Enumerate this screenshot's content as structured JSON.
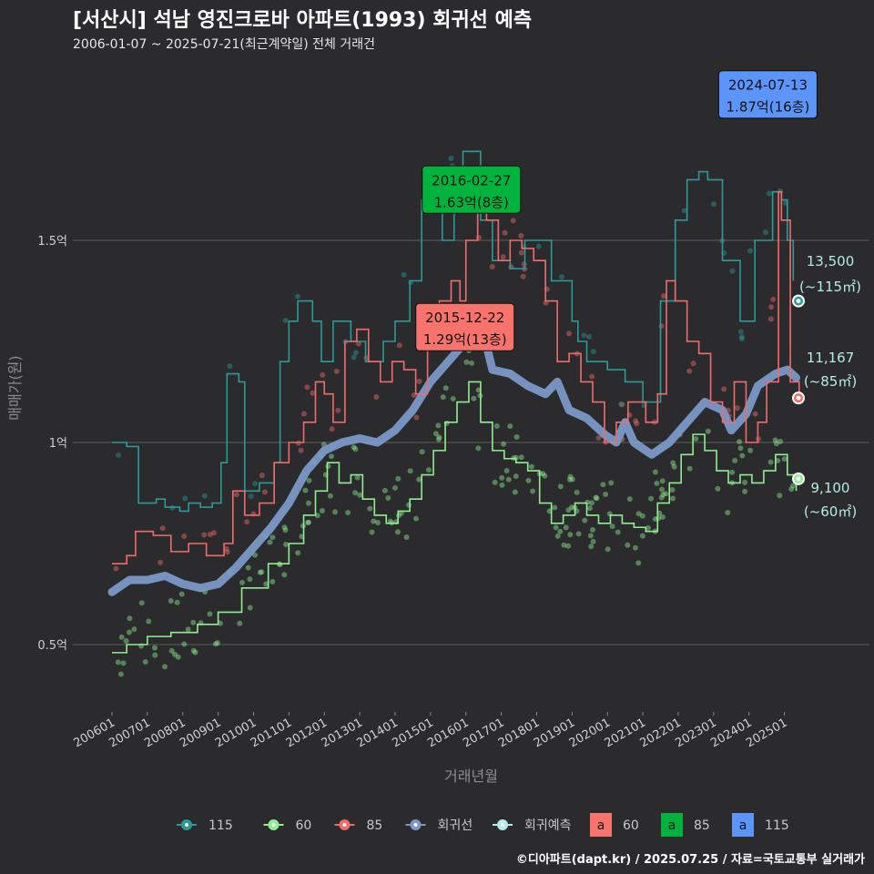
{
  "header": {
    "title": "[서산시] 석남 영진크로바 아파트(1993) 회귀선 예측",
    "subtitle": "2006-01-07 ~ 2025-07-21(최근계약일) 전체 거래건"
  },
  "caption": "©디아파트(dapt.kr) / 2025.07.25 / 자료=국토교통부 실거래가",
  "chart_data": {
    "type": "line",
    "xlabel": "거래년월",
    "ylabel": "매매가(원)",
    "x_range": [
      "2006-01",
      "2025-07"
    ],
    "ylim": [
      0.32,
      1.98
    ],
    "y_ticks": [
      {
        "value": 0.5,
        "label": "0.5억"
      },
      {
        "value": 1.0,
        "label": "1억"
      },
      {
        "value": 1.5,
        "label": "1.5억"
      }
    ],
    "x_ticks": [
      "200601",
      "200701",
      "200801",
      "200901",
      "201001",
      "201101",
      "201201",
      "201301",
      "201401",
      "201501",
      "201601",
      "201701",
      "201801",
      "201901",
      "202001",
      "202101",
      "202201",
      "202301",
      "202401",
      "202501"
    ],
    "grid": true,
    "colors": {
      "s115": "#2b9a98",
      "s60": "#90ee90",
      "s85": "#f06c6c",
      "regression": "#7a99c8",
      "forecast": "#b2ece8"
    },
    "series": [
      {
        "name": "115",
        "key": "s115",
        "color": "#2b9a98",
        "points": [
          [
            "2006-01",
            1.0
          ],
          [
            "2006-06",
            0.99
          ],
          [
            "2006-10",
            0.85
          ],
          [
            "2007-04",
            0.86
          ],
          [
            "2007-07",
            0.84
          ],
          [
            "2007-12",
            0.83
          ],
          [
            "2008-03",
            0.85
          ],
          [
            "2008-07",
            0.84
          ],
          [
            "2008-11",
            0.85
          ],
          [
            "2009-02",
            0.95
          ],
          [
            "2009-04",
            1.17
          ],
          [
            "2009-08",
            1.15
          ],
          [
            "2009-10",
            0.88
          ],
          [
            "2010-03",
            0.9
          ],
          [
            "2010-08",
            0.95
          ],
          [
            "2010-10",
            1.2
          ],
          [
            "2011-01",
            1.3
          ],
          [
            "2011-04",
            1.35
          ],
          [
            "2011-09",
            1.3
          ],
          [
            "2011-12",
            1.2
          ],
          [
            "2012-04",
            1.3
          ],
          [
            "2012-10",
            1.25
          ],
          [
            "2013-03",
            1.2
          ],
          [
            "2013-09",
            1.25
          ],
          [
            "2014-01",
            1.3
          ],
          [
            "2014-06",
            1.4
          ],
          [
            "2014-10",
            1.6
          ],
          [
            "2015-01",
            1.62
          ],
          [
            "2015-05",
            1.5
          ],
          [
            "2015-09",
            1.68
          ],
          [
            "2015-12",
            1.72
          ],
          [
            "2016-01",
            1.72
          ],
          [
            "2016-06",
            1.55
          ],
          [
            "2016-10",
            1.45
          ],
          [
            "2017-04",
            1.43
          ],
          [
            "2017-09",
            1.5
          ],
          [
            "2018-03",
            1.5
          ],
          [
            "2018-06",
            1.4
          ],
          [
            "2018-08",
            1.4
          ],
          [
            "2019-01",
            1.3
          ],
          [
            "2019-03",
            1.25
          ],
          [
            "2019-06",
            1.2
          ],
          [
            "2020-01",
            1.18
          ],
          [
            "2020-07",
            1.15
          ],
          [
            "2021-01",
            1.1
          ],
          [
            "2021-07",
            1.35
          ],
          [
            "2021-12",
            1.55
          ],
          [
            "2022-04",
            1.65
          ],
          [
            "2022-08",
            1.67
          ],
          [
            "2022-11",
            1.65
          ],
          [
            "2023-04",
            1.45
          ],
          [
            "2023-10",
            1.3
          ],
          [
            "2024-03",
            1.5
          ],
          [
            "2024-09",
            1.62
          ],
          [
            "2024-12",
            1.6
          ],
          [
            "2025-02",
            1.5
          ],
          [
            "2025-04",
            1.4
          ]
        ]
      },
      {
        "name": "60",
        "key": "s60",
        "color": "#90ee90",
        "points": [
          [
            "2006-01",
            0.48
          ],
          [
            "2006-06",
            0.5
          ],
          [
            "2007-01",
            0.52
          ],
          [
            "2007-09",
            0.53
          ],
          [
            "2008-06",
            0.55
          ],
          [
            "2009-01",
            0.58
          ],
          [
            "2009-09",
            0.64
          ],
          [
            "2010-06",
            0.7
          ],
          [
            "2011-01",
            0.75
          ],
          [
            "2011-06",
            0.82
          ],
          [
            "2011-10",
            0.88
          ],
          [
            "2012-02",
            0.95
          ],
          [
            "2012-06",
            0.9
          ],
          [
            "2012-10",
            0.92
          ],
          [
            "2013-02",
            0.86
          ],
          [
            "2013-06",
            0.82
          ],
          [
            "2013-10",
            0.8
          ],
          [
            "2014-02",
            0.83
          ],
          [
            "2014-06",
            0.86
          ],
          [
            "2014-10",
            0.92
          ],
          [
            "2015-02",
            0.98
          ],
          [
            "2015-06",
            1.05
          ],
          [
            "2015-10",
            1.1
          ],
          [
            "2016-02",
            1.15
          ],
          [
            "2016-06",
            1.05
          ],
          [
            "2016-10",
            0.98
          ],
          [
            "2017-02",
            0.96
          ],
          [
            "2017-06",
            0.95
          ],
          [
            "2017-10",
            0.93
          ],
          [
            "2018-02",
            0.85
          ],
          [
            "2018-06",
            0.8
          ],
          [
            "2018-10",
            0.82
          ],
          [
            "2019-02",
            0.85
          ],
          [
            "2019-06",
            0.82
          ],
          [
            "2019-10",
            0.8
          ],
          [
            "2020-02",
            0.82
          ],
          [
            "2020-06",
            0.8
          ],
          [
            "2020-10",
            0.79
          ],
          [
            "2021-02",
            0.78
          ],
          [
            "2021-06",
            0.85
          ],
          [
            "2021-10",
            0.9
          ],
          [
            "2022-02",
            0.97
          ],
          [
            "2022-06",
            1.02
          ],
          [
            "2022-10",
            0.98
          ],
          [
            "2023-02",
            0.93
          ],
          [
            "2023-06",
            0.9
          ],
          [
            "2023-10",
            0.92
          ],
          [
            "2024-02",
            0.9
          ],
          [
            "2024-06",
            0.93
          ],
          [
            "2024-10",
            0.97
          ],
          [
            "2025-02",
            0.92
          ],
          [
            "2025-05",
            0.88
          ]
        ]
      },
      {
        "name": "85",
        "key": "s85",
        "color": "#f06c6c",
        "points": [
          [
            "2006-01",
            0.7
          ],
          [
            "2006-06",
            0.72
          ],
          [
            "2006-09",
            0.78
          ],
          [
            "2007-03",
            0.77
          ],
          [
            "2007-09",
            0.73
          ],
          [
            "2008-03",
            0.75
          ],
          [
            "2008-09",
            0.72
          ],
          [
            "2009-03",
            0.75
          ],
          [
            "2009-06",
            0.88
          ],
          [
            "2009-10",
            0.82
          ],
          [
            "2010-03",
            0.85
          ],
          [
            "2010-08",
            0.95
          ],
          [
            "2011-01",
            1.0
          ],
          [
            "2011-06",
            1.05
          ],
          [
            "2011-10",
            1.15
          ],
          [
            "2012-01",
            1.12
          ],
          [
            "2012-04",
            1.05
          ],
          [
            "2012-08",
            1.25
          ],
          [
            "2012-12",
            1.28
          ],
          [
            "2013-04",
            1.2
          ],
          [
            "2013-08",
            1.15
          ],
          [
            "2013-12",
            1.2
          ],
          [
            "2014-04",
            1.18
          ],
          [
            "2014-08",
            1.12
          ],
          [
            "2014-12",
            1.25
          ],
          [
            "2015-04",
            1.35
          ],
          [
            "2015-08",
            1.4
          ],
          [
            "2015-11",
            1.35
          ],
          [
            "2016-01",
            1.5
          ],
          [
            "2016-05",
            1.58
          ],
          [
            "2016-08",
            1.55
          ],
          [
            "2016-12",
            1.45
          ],
          [
            "2017-04",
            1.5
          ],
          [
            "2017-08",
            1.48
          ],
          [
            "2017-12",
            1.45
          ],
          [
            "2018-04",
            1.35
          ],
          [
            "2018-08",
            1.2
          ],
          [
            "2018-12",
            1.22
          ],
          [
            "2019-04",
            1.15
          ],
          [
            "2019-08",
            1.1
          ],
          [
            "2019-12",
            1.0
          ],
          [
            "2020-04",
            1.05
          ],
          [
            "2020-08",
            1.1
          ],
          [
            "2021-02",
            1.05
          ],
          [
            "2021-06",
            1.12
          ],
          [
            "2021-09",
            1.4
          ],
          [
            "2021-12",
            1.35
          ],
          [
            "2022-04",
            1.25
          ],
          [
            "2022-08",
            1.22
          ],
          [
            "2022-12",
            1.1
          ],
          [
            "2023-04",
            1.05
          ],
          [
            "2023-08",
            1.15
          ],
          [
            "2023-12",
            1.0
          ],
          [
            "2024-04",
            1.05
          ],
          [
            "2024-07",
            1.15
          ],
          [
            "2024-11",
            1.62
          ],
          [
            "2024-12",
            1.55
          ],
          [
            "2025-03",
            1.15
          ],
          [
            "2025-06",
            1.12
          ]
        ]
      },
      {
        "name": "회귀선",
        "key": "regression",
        "color": "#7a99c8",
        "points": [
          [
            "2006-01",
            0.63
          ],
          [
            "2006-07",
            0.66
          ],
          [
            "2007-01",
            0.66
          ],
          [
            "2007-07",
            0.67
          ],
          [
            "2008-01",
            0.65
          ],
          [
            "2008-07",
            0.64
          ],
          [
            "2009-01",
            0.65
          ],
          [
            "2009-07",
            0.69
          ],
          [
            "2010-01",
            0.74
          ],
          [
            "2010-07",
            0.79
          ],
          [
            "2011-01",
            0.85
          ],
          [
            "2011-07",
            0.93
          ],
          [
            "2012-01",
            0.98
          ],
          [
            "2012-07",
            1.0
          ],
          [
            "2013-01",
            1.01
          ],
          [
            "2013-07",
            1.0
          ],
          [
            "2014-01",
            1.03
          ],
          [
            "2014-07",
            1.08
          ],
          [
            "2015-01",
            1.15
          ],
          [
            "2015-07",
            1.2
          ],
          [
            "2016-01",
            1.25
          ],
          [
            "2016-07",
            1.27
          ],
          [
            "2016-10",
            1.18
          ],
          [
            "2017-04",
            1.17
          ],
          [
            "2017-10",
            1.14
          ],
          [
            "2018-04",
            1.12
          ],
          [
            "2018-08",
            1.15
          ],
          [
            "2018-12",
            1.08
          ],
          [
            "2019-06",
            1.06
          ],
          [
            "2019-12",
            1.02
          ],
          [
            "2020-04",
            1.0
          ],
          [
            "2020-07",
            1.05
          ],
          [
            "2020-10",
            1.0
          ],
          [
            "2021-04",
            0.97
          ],
          [
            "2021-10",
            1.0
          ],
          [
            "2022-04",
            1.05
          ],
          [
            "2022-10",
            1.1
          ],
          [
            "2023-04",
            1.08
          ],
          [
            "2023-07",
            1.03
          ],
          [
            "2023-12",
            1.07
          ],
          [
            "2024-04",
            1.14
          ],
          [
            "2024-10",
            1.17
          ],
          [
            "2025-02",
            1.18
          ],
          [
            "2025-05",
            1.16
          ]
        ]
      }
    ],
    "forecast": [
      {
        "series": "115",
        "value": 13500,
        "label_value": "13,500",
        "label_area": "(~115㎡)",
        "date": "2025-07",
        "y": 1.35
      },
      {
        "series": "85",
        "value": 11167,
        "label_value": "11,167",
        "label_area": "(~85㎡)",
        "date": "2025-07",
        "y": 1.11
      },
      {
        "series": "60",
        "value": 9100,
        "label_value": "9,100",
        "label_area": "(~60㎡)",
        "date": "2025-07",
        "y": 0.91
      }
    ],
    "annotations": [
      {
        "series": "85",
        "date": "2015-12-22",
        "date_label": "2015-12-22",
        "price_label": "1.29억(13층)",
        "y": 1.29,
        "color": "#f8736b"
      },
      {
        "series": "60",
        "date": "2016-02-27",
        "date_label": "2016-02-27",
        "price_label": "1.63억(8층)",
        "y": 1.63,
        "color": "#00b33c"
      },
      {
        "series": "115",
        "date": "2024-07-13",
        "date_label": "2024-07-13",
        "price_label": "1.87억(16층)",
        "y": 1.87,
        "color": "#5b95f9"
      }
    ],
    "legend": {
      "placement": "bottom",
      "line_items": [
        {
          "label": "115",
          "color": "#2b9a98"
        },
        {
          "label": "60",
          "color": "#90ee90"
        },
        {
          "label": "85",
          "color": "#f06c6c"
        },
        {
          "label": "회귀선",
          "color": "#7a99c8"
        },
        {
          "label": "회귀예측",
          "color": "#b2ece8"
        }
      ],
      "box_items": [
        {
          "glyph": "a",
          "label": "60",
          "color": "#f8736b"
        },
        {
          "glyph": "a",
          "label": "85",
          "color": "#00b33c"
        },
        {
          "glyph": "a",
          "label": "115",
          "color": "#5b95f9"
        }
      ]
    }
  }
}
